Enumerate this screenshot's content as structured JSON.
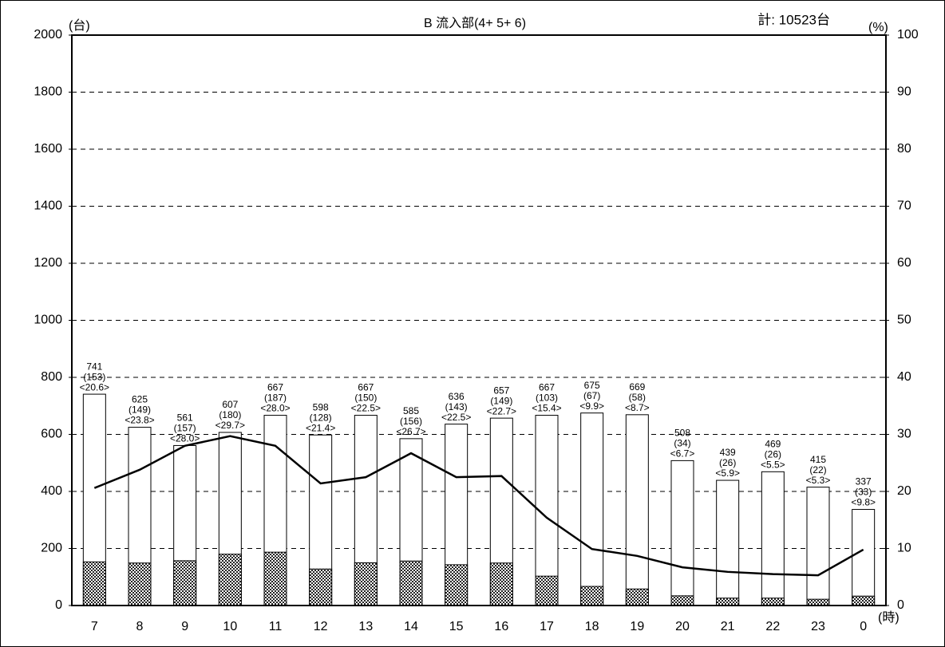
{
  "chart_data": {
    "type": "bar",
    "title": "B 流入部(4+ 5+ 6)",
    "total_label": "計: 10523台",
    "y_label": "(台)",
    "y2_label": "(%)",
    "x_label": "(時)",
    "categories": [
      "7",
      "8",
      "9",
      "10",
      "11",
      "12",
      "13",
      "14",
      "15",
      "16",
      "17",
      "18",
      "19",
      "20",
      "21",
      "22",
      "23",
      "0"
    ],
    "series": [
      {
        "color": "#ffffff",
        "values": [
          741,
          625,
          561,
          607,
          667,
          598,
          667,
          585,
          636,
          657,
          667,
          675,
          669,
          508,
          439,
          469,
          415,
          337
        ]
      },
      {
        "color": "#333333",
        "values": [
          153,
          149,
          157,
          180,
          187,
          128,
          150,
          156,
          143,
          149,
          103,
          67,
          58,
          34,
          26,
          26,
          22,
          33
        ],
        "value_labels": [
          "(153)",
          "(149)",
          "(157)",
          "(180)",
          "(187)",
          "(128)",
          "(150)",
          "(156)",
          "(143)",
          "(149)",
          "(103)",
          "(67)",
          "(58)",
          "(34)",
          "(26)",
          "(26)",
          "(22)",
          "(33)"
        ]
      },
      {
        "color": "#000000",
        "axis": "y2",
        "values": [
          20.6,
          23.8,
          28.0,
          29.7,
          28.0,
          21.4,
          22.5,
          26.7,
          22.5,
          22.7,
          15.4,
          9.9,
          8.7,
          6.7,
          5.9,
          5.5,
          5.3,
          9.8
        ],
        "value_labels": [
          "<20.6>",
          "<23.8>",
          "<28.0>",
          "<29.7>",
          "<28.0>",
          "<21.4>",
          "<22.5>",
          "<26.7>",
          "<22.5>",
          "<22.7>",
          "<15.4>",
          "<9.9>",
          "<8.7>",
          "<6.7>",
          "<5.9>",
          "<5.5>",
          "<5.3>",
          "<9.8>"
        ]
      }
    ],
    "ylim": [
      0,
      2000
    ],
    "yticks": [
      0,
      200,
      400,
      600,
      800,
      1000,
      1200,
      1400,
      1600,
      1800,
      2000
    ],
    "y2lim": [
      0,
      100
    ],
    "y2ticks": [
      0,
      10,
      20,
      30,
      40,
      50,
      60,
      70,
      80,
      90,
      100
    ],
    "grid": true
  }
}
